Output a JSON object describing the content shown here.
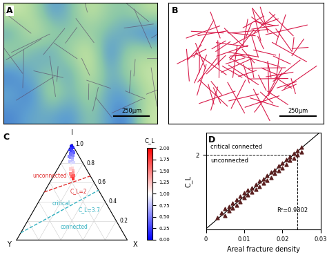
{
  "chart_data": [
    {
      "type": "image",
      "title": "A",
      "scale_bar": "250μm"
    },
    {
      "type": "diagram",
      "title": "B",
      "scale_bar": "250μm",
      "color": "#d81b4a"
    },
    {
      "type": "ternary",
      "title": "C",
      "axis_labels": {
        "top": "I",
        "left": "Y",
        "right": "X"
      },
      "ticks": [
        0.2,
        0.4,
        0.6,
        0.8,
        1.0
      ],
      "points": {
        "I": [
          0.97,
          0.95,
          0.93,
          0.96,
          0.94,
          0.92,
          0.9,
          0.91,
          0.98,
          0.89,
          0.88,
          0.86,
          0.85,
          0.83,
          0.82,
          0.8,
          0.78,
          0.77,
          0.75,
          0.74,
          0.72,
          0.7,
          0.69,
          0.67,
          0.66,
          0.64,
          0.87,
          0.81
        ],
        "X": [
          0.01,
          0.02,
          0.03,
          0.03,
          0.01,
          0.05,
          0.04,
          0.06,
          0.01,
          0.05,
          0.07,
          0.06,
          0.08,
          0.09,
          0.07,
          0.1,
          0.12,
          0.1,
          0.13,
          0.12,
          0.15,
          0.16,
          0.14,
          0.18,
          0.17,
          0.19,
          0.04,
          0.11
        ],
        "Y": [
          0.02,
          0.03,
          0.04,
          0.01,
          0.05,
          0.03,
          0.06,
          0.03,
          0.01,
          0.06,
          0.05,
          0.08,
          0.07,
          0.08,
          0.11,
          0.1,
          0.1,
          0.13,
          0.12,
          0.14,
          0.13,
          0.14,
          0.17,
          0.15,
          0.17,
          0.17,
          0.09,
          0.08
        ],
        "C_L": [
          0.12,
          0.2,
          0.29,
          0.16,
          0.24,
          0.34,
          0.42,
          0.38,
          0.08,
          0.46,
          0.52,
          0.6,
          0.65,
          0.75,
          0.77,
          0.89,
          1.0,
          1.02,
          1.15,
          1.18,
          1.32,
          1.43,
          1.44,
          1.61,
          1.64,
          1.78,
          0.54,
          0.85
        ]
      },
      "lines": [
        {
          "name": "C_L=2",
          "color": "#e03030",
          "line_style": "dashed",
          "from": [
            0.5,
            0.0,
            0.5
          ],
          "to": [
            0.667,
            0.333,
            0.0
          ]
        },
        {
          "name": "C_L=3.7",
          "color": "#30b0c0",
          "line_style": "dashed",
          "from": [
            0.075,
            0.0,
            0.925
          ],
          "to": [
            0.519,
            0.481,
            0.0
          ]
        }
      ],
      "annotations": [
        {
          "text": "unconnected",
          "color": "#e03030"
        },
        {
          "text": "C_L=2",
          "color": "#e03030"
        },
        {
          "text": "critical",
          "color": "#30b0c0"
        },
        {
          "text": "C_L=3.7",
          "color": "#30b0c0"
        },
        {
          "text": "connected",
          "color": "#30b0c0"
        }
      ],
      "colorbar": {
        "label": "C_L",
        "range": [
          0,
          2
        ],
        "ticks": [
          {
            "value": 0,
            "label": "0.00"
          },
          {
            "value": 0.25,
            "label": "0.25"
          },
          {
            "value": 0.5,
            "label": "0.50"
          },
          {
            "value": 0.75,
            "label": "0.75"
          },
          {
            "value": 1.0,
            "label": "1.00"
          },
          {
            "value": 1.25,
            "label": "1.25"
          },
          {
            "value": 1.5,
            "label": "1.50"
          },
          {
            "value": 1.75,
            "label": "1.75"
          },
          {
            "value": 2.0,
            "label": "2.00"
          }
        ]
      }
    },
    {
      "type": "scatter",
      "title": "D",
      "x_label": "Areal fracture density",
      "y_label": "C_L",
      "color": "#5a1f1f",
      "marker": "triangle",
      "x": [
        0.003,
        0.004,
        0.005,
        0.005,
        0.006,
        0.006,
        0.007,
        0.007,
        0.008,
        0.008,
        0.009,
        0.009,
        0.01,
        0.01,
        0.011,
        0.011,
        0.012,
        0.012,
        0.013,
        0.013,
        0.014,
        0.014,
        0.015,
        0.015,
        0.016,
        0.016,
        0.017,
        0.017,
        0.018,
        0.018,
        0.019,
        0.019,
        0.02,
        0.02,
        0.021,
        0.021,
        0.022,
        0.022,
        0.023,
        0.023,
        0.024,
        0.024,
        0.025,
        0.025
      ],
      "values": [
        0.32,
        0.45,
        0.38,
        0.55,
        0.5,
        0.62,
        0.7,
        0.58,
        0.66,
        0.8,
        0.75,
        0.9,
        0.85,
        0.98,
        0.92,
        1.05,
        1.0,
        1.12,
        1.08,
        1.2,
        1.15,
        1.3,
        1.25,
        1.35,
        1.32,
        1.45,
        1.4,
        1.55,
        1.5,
        1.6,
        1.58,
        1.7,
        1.65,
        1.78,
        1.75,
        1.88,
        1.85,
        1.95,
        1.92,
        2.05,
        2.0,
        2.12,
        2.08,
        2.2
      ],
      "fit": {
        "x": [
          0,
          0.03
        ],
        "values": [
          0.02,
          2.62
        ],
        "color": "#000000"
      },
      "reference_lines": {
        "x": 0.024,
        "y": 2,
        "line_style": "dashed"
      },
      "annotations": [
        "critical connected",
        "unconnected",
        "R²=0.9302"
      ],
      "xlim": [
        0,
        0.03
      ],
      "ylim": [
        0,
        2.6
      ],
      "xticks": [
        0,
        0.01,
        0.02,
        0.03
      ],
      "yticks": [
        2
      ]
    }
  ]
}
